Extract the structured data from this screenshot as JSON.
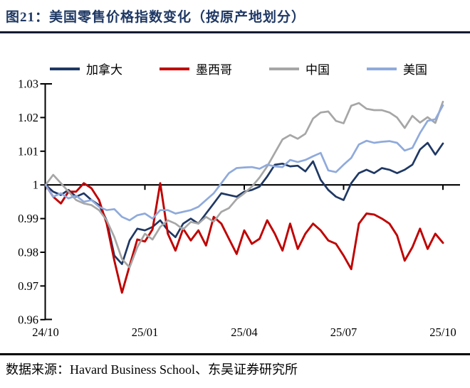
{
  "header": {
    "title": "图21：美国零售价格指数变化（按原产地划分）"
  },
  "source": {
    "text": "数据来源：Havard Business School、东吴证券研究所"
  },
  "chart_data": {
    "type": "line",
    "title": "美国零售价格指数变化（按原产地划分）",
    "xlabel": "",
    "ylabel": "",
    "x_range_dates": [
      "24/10",
      "25/10"
    ],
    "x_tick_labels": [
      "24/10",
      "25/01",
      "25/04",
      "25/07",
      "25/10"
    ],
    "y_tick_labels": [
      "1.03",
      "1.02",
      "1.01",
      "1",
      "0.99",
      "0.98",
      "0.97",
      "0.96"
    ],
    "ylim": [
      0.96,
      1.03
    ],
    "baseline": 1.0,
    "grid": "off",
    "legend_position": "top",
    "n_points": 53,
    "frequency": "weekly",
    "series": [
      {
        "name": "加拿大",
        "color": "#1f3864",
        "values": [
          1.0,
          0.998,
          0.997,
          0.9985,
          0.9965,
          0.9975,
          0.9955,
          0.994,
          0.9895,
          0.979,
          0.9765,
          0.9835,
          0.987,
          0.9865,
          0.9875,
          0.9895,
          0.9865,
          0.9845,
          0.9885,
          0.99,
          0.9885,
          0.9915,
          0.9945,
          0.9975,
          0.997,
          0.9965,
          0.998,
          0.9985,
          0.9995,
          1.0025,
          1.006,
          1.0063,
          1.0055,
          1.0057,
          1.004,
          1.007,
          1.0015,
          0.9985,
          0.9965,
          0.9955,
          1.0005,
          1.0035,
          1.0045,
          1.0035,
          1.005,
          1.0045,
          1.0035,
          1.0045,
          1.006,
          1.0105,
          1.0125,
          1.009,
          1.0123
        ]
      },
      {
        "name": "墨西哥",
        "color": "#c00000",
        "values": [
          1.0,
          0.9965,
          0.9945,
          0.998,
          0.998,
          1.0005,
          0.999,
          0.9955,
          0.9885,
          0.9775,
          0.968,
          0.976,
          0.9838,
          0.9832,
          0.9868,
          1.0005,
          0.9855,
          0.9805,
          0.987,
          0.9835,
          0.9865,
          0.982,
          0.9905,
          0.9885,
          0.984,
          0.9795,
          0.9865,
          0.9825,
          0.984,
          0.9895,
          0.9855,
          0.9805,
          0.9885,
          0.981,
          0.9855,
          0.9885,
          0.9865,
          0.9835,
          0.9825,
          0.979,
          0.975,
          0.9885,
          0.9915,
          0.9912,
          0.99,
          0.9885,
          0.985,
          0.9775,
          0.9815,
          0.987,
          0.981,
          0.9855,
          0.9828
        ]
      },
      {
        "name": "中国",
        "color": "#a6a6a6",
        "values": [
          1.0,
          1.003,
          1.0005,
          0.998,
          0.9955,
          0.9945,
          0.994,
          0.9925,
          0.9895,
          0.9845,
          0.978,
          0.9755,
          0.9815,
          0.9855,
          0.9838,
          0.9875,
          0.9895,
          0.9885,
          0.9868,
          0.989,
          0.9885,
          0.9905,
          0.9891,
          0.992,
          0.9931,
          0.9958,
          0.9975,
          0.9995,
          1.0022,
          1.0055,
          1.0095,
          1.0135,
          1.0148,
          1.0137,
          1.0152,
          1.0197,
          1.0215,
          1.0218,
          1.019,
          1.0183,
          1.0235,
          1.0243,
          1.0226,
          1.0222,
          1.0222,
          1.0215,
          1.02,
          1.0169,
          1.0205,
          1.0185,
          1.0201,
          1.0184,
          1.0247
        ]
      },
      {
        "name": "美国",
        "color": "#8faadc",
        "values": [
          1.0,
          0.9965,
          0.9975,
          0.996,
          0.9968,
          0.995,
          0.9955,
          0.9935,
          0.9925,
          0.9928,
          0.9905,
          0.9895,
          0.991,
          0.9915,
          0.99,
          0.9925,
          0.9925,
          0.9915,
          0.992,
          0.9925,
          0.9935,
          0.9955,
          0.9975,
          1.0005,
          1.0035,
          1.005,
          1.0052,
          1.0053,
          1.0048,
          1.006,
          1.0055,
          1.0053,
          1.0074,
          1.0068,
          1.0074,
          1.0085,
          1.0095,
          1.0043,
          1.0038,
          1.006,
          1.008,
          1.012,
          1.0131,
          1.0125,
          1.0128,
          1.013,
          1.0125,
          1.0102,
          1.011,
          1.0154,
          1.019,
          1.0195,
          1.0236
        ]
      }
    ]
  }
}
